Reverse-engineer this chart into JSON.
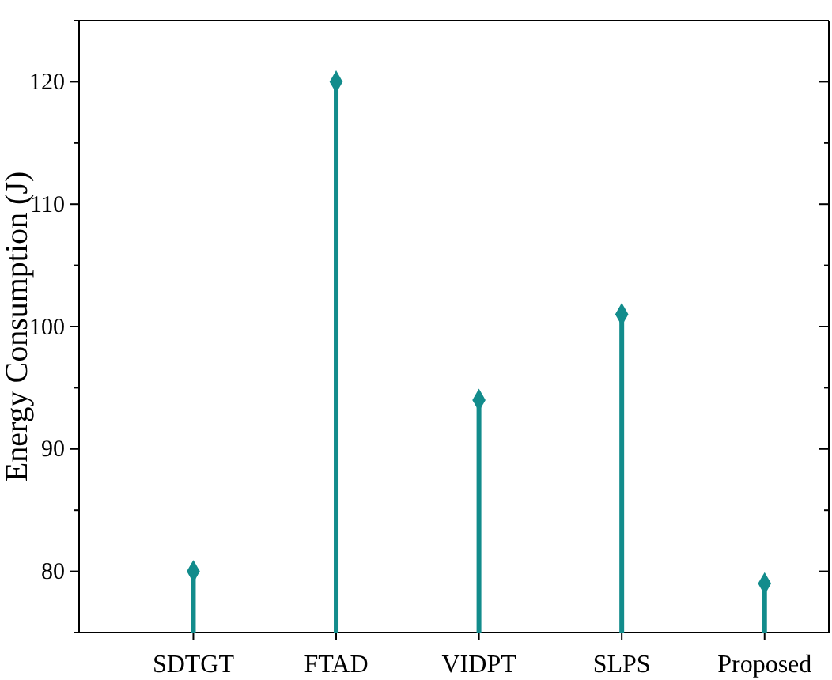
{
  "chart_data": {
    "type": "lollipop",
    "ylabel": "Energy Consumption (J)",
    "categories": [
      "SDTGT",
      "FTAD",
      "VIDPT",
      "SLPS",
      "Proposed"
    ],
    "values": [
      80,
      120,
      94,
      101,
      79
    ],
    "color": "#128c8c",
    "marker": "diamond",
    "ylim": [
      75,
      125
    ],
    "yticks": [
      {
        "value": 75,
        "label": null
      },
      80,
      {
        "value": 85,
        "label": null
      },
      90,
      {
        "value": 95,
        "label": null
      },
      100,
      {
        "value": 105,
        "label": null
      },
      110,
      {
        "value": 115,
        "label": null
      },
      120,
      {
        "value": 125,
        "label": null
      }
    ],
    "grid": false
  }
}
